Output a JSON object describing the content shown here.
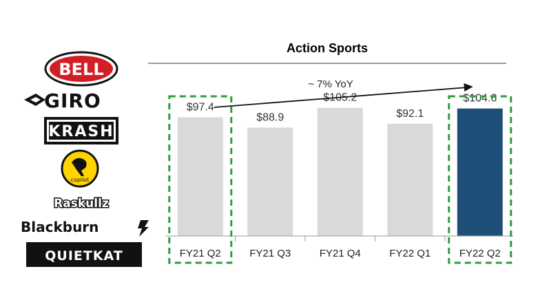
{
  "logos": {
    "bell": "BELL",
    "giro": "GIRO",
    "krash": "KRASH",
    "copilot": "copilot",
    "raskullz": "Raskullz",
    "blackburn": "Blackburn",
    "quietkat": "QUIETKAT"
  },
  "annotation": "~ 7% YoY",
  "colors": {
    "bar": "#d9d9d9",
    "highlight": "#1f4e79",
    "dash": "#2e9e3e"
  },
  "chart_data": {
    "type": "bar",
    "title": "Action Sports",
    "categories": [
      "FY21 Q2",
      "FY21 Q3",
      "FY21 Q4",
      "FY22 Q1",
      "FY22 Q2"
    ],
    "values": [
      97.4,
      88.9,
      105.2,
      92.1,
      104.6
    ],
    "labels": [
      "$97.4",
      "$88.9",
      "$105.2",
      "$92.1",
      "$104.6"
    ],
    "highlighted": [
      "FY21 Q2",
      "FY22 Q2"
    ],
    "ylim": [
      0,
      140
    ],
    "grid": false,
    "legend": "none"
  }
}
